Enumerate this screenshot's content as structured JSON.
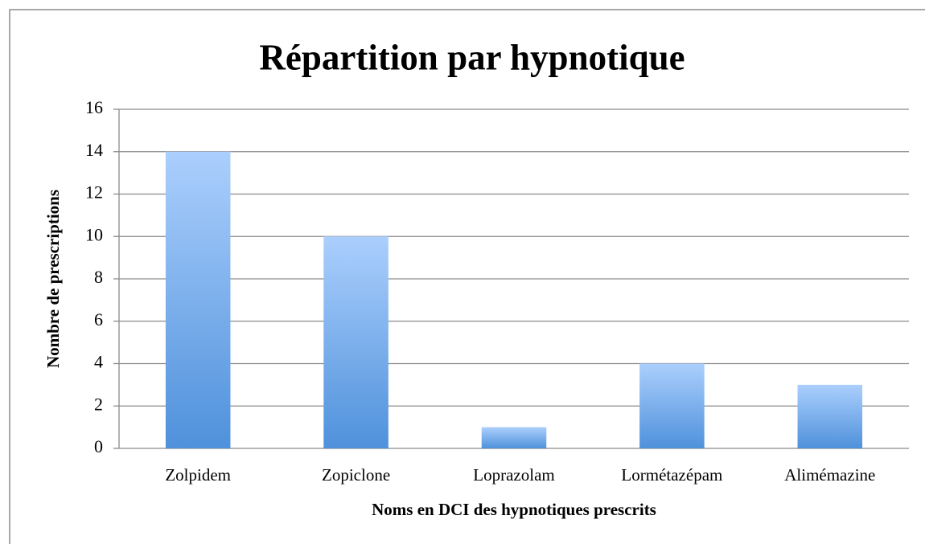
{
  "chart_data": {
    "type": "bar",
    "title": "Répartition par hypnotique",
    "x_label": "Noms en DCI des hypnotiques prescrits",
    "y_label": "Nombre de prescriptions",
    "categories": [
      "Zolpidem",
      "Zopiclone",
      "Loprazolam",
      "Lormétazépam",
      "Alimémazine"
    ],
    "values": [
      14,
      10,
      1,
      4,
      3
    ],
    "color": "#5b9be0",
    "ylim": [
      0,
      16
    ],
    "yticks": [
      0,
      2,
      4,
      6,
      8,
      10,
      12,
      14,
      16
    ],
    "grid": true
  }
}
